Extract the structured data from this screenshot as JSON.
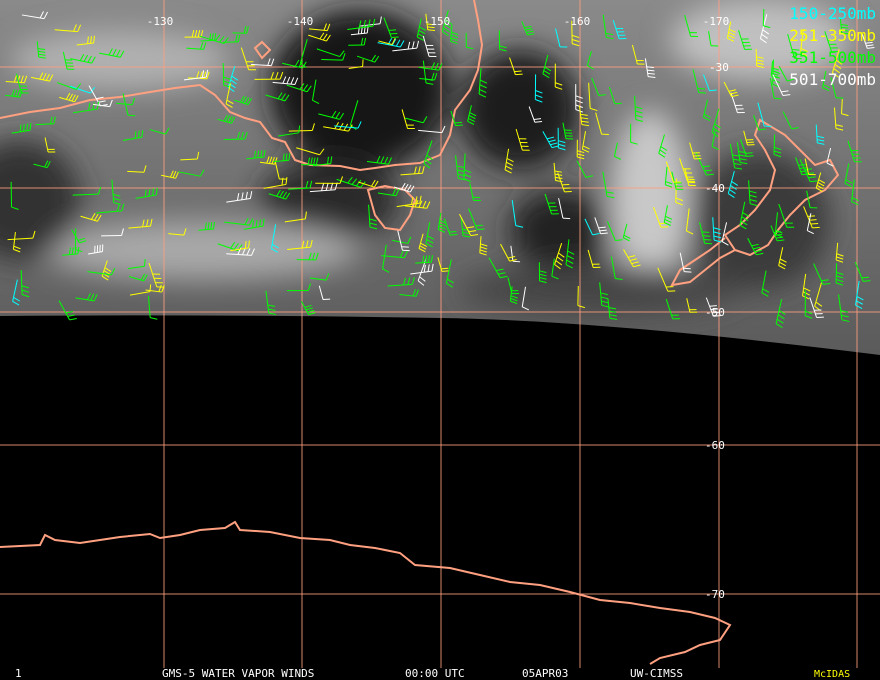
{
  "map": {
    "longitude_labels": [
      "-130",
      "-140",
      "-150",
      "-160",
      "-170"
    ],
    "latitude_labels": [
      "-30",
      "-40",
      "-50",
      "-60",
      "-70"
    ],
    "legend": [
      {
        "label": "150-250mb",
        "color": "#00ffff"
      },
      {
        "label": "251-350mb",
        "color": "#ffff00"
      },
      {
        "label": "351-500mb",
        "color": "#00ff00"
      },
      {
        "label": "501-700mb",
        "color": "#ffffff"
      }
    ],
    "footer": {
      "frame": "1",
      "product": "GMS-5 WATER VAPOR WINDS",
      "time": "00:00 UTC",
      "date": "05APR03",
      "source": "UW-CIMSS",
      "software": "McIDAS"
    }
  }
}
